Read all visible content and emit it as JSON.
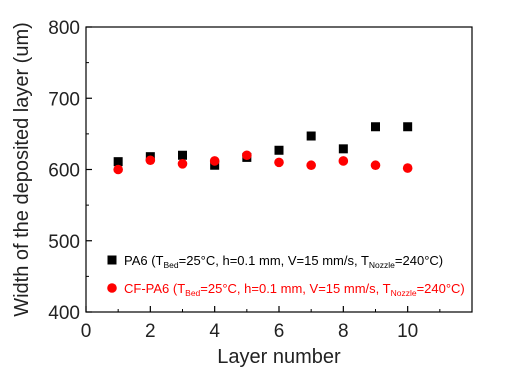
{
  "chart_data": {
    "type": "scatter",
    "xlabel": "Layer number",
    "ylabel": "Width of the deposited layer (um)",
    "xlim": [
      0,
      12
    ],
    "ylim": [
      400,
      800
    ],
    "xticks": [
      0,
      2,
      4,
      6,
      8,
      10
    ],
    "yticks": [
      400,
      500,
      600,
      700,
      800
    ],
    "grid": false,
    "legend_position": "bottom-right",
    "series": [
      {
        "name": "PA6",
        "legend": {
          "prefix": "PA6 (T",
          "sub1": "Bed",
          "mid": "=25°C, h=0.1 mm, V=15 mm/s, T",
          "sub2": "Nozzle",
          "suffix": "=240°C)"
        },
        "marker": "square",
        "color": "#000000",
        "x": [
          1,
          2,
          3,
          4,
          5,
          6,
          7,
          8,
          9,
          10
        ],
        "y": [
          611,
          618,
          620,
          606,
          617,
          627,
          647,
          629,
          660,
          660
        ]
      },
      {
        "name": "CF-PA6",
        "legend": {
          "prefix": "CF-PA6 (T",
          "sub1": "Bed",
          "mid": "=25°C, h=0.1 mm, V=15 mm/s, T",
          "sub2": "Nozzle",
          "suffix": "=240°C)"
        },
        "marker": "circle",
        "color": "#ff0000",
        "x": [
          1,
          2,
          3,
          4,
          5,
          6,
          7,
          8,
          9,
          10
        ],
        "y": [
          600,
          613,
          608,
          612,
          620,
          610,
          606,
          612,
          606,
          602
        ]
      }
    ]
  }
}
